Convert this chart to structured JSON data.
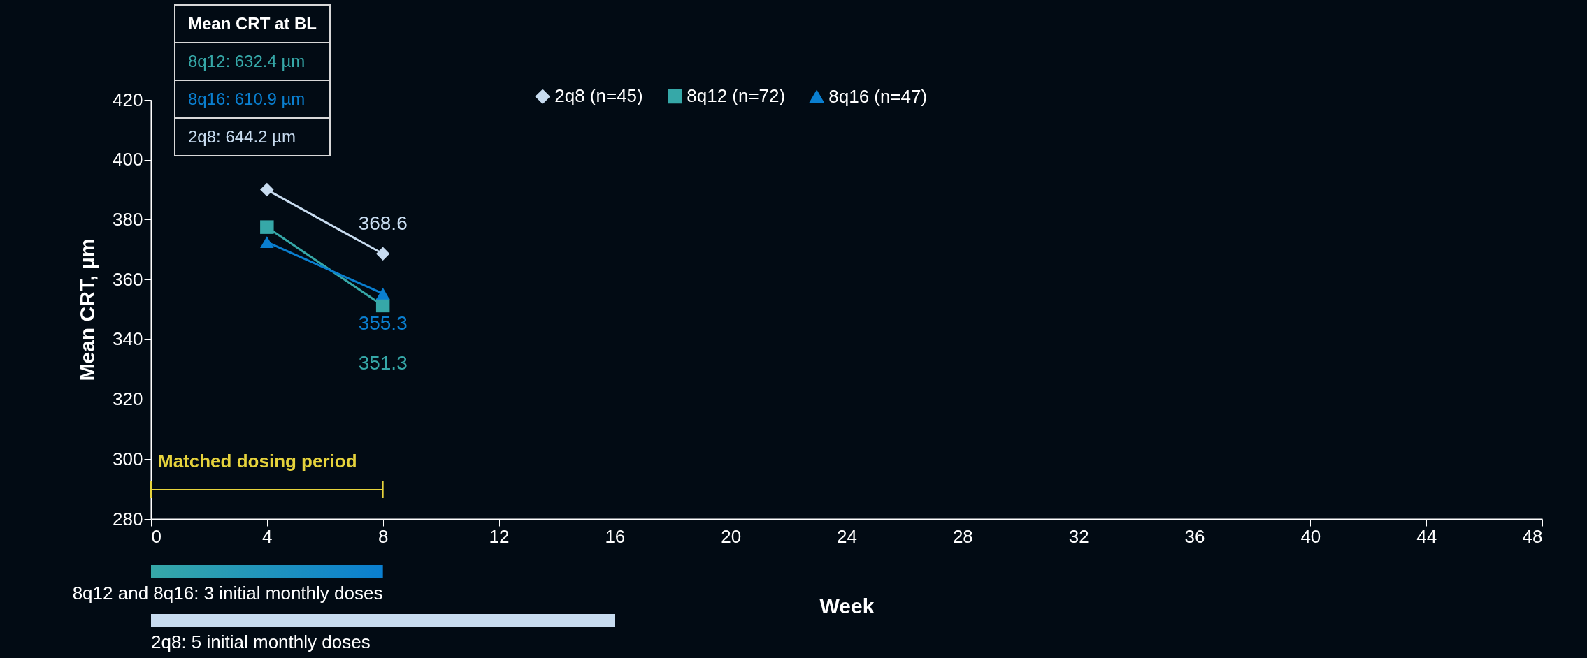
{
  "chart_data": {
    "type": "line",
    "xlabel": "Week",
    "ylabel": "Mean CRT, µm",
    "x": [
      4,
      8
    ],
    "series": [
      {
        "name": "2q8 (n=45)",
        "color": "#c8dcf0",
        "marker": "diamond",
        "values": [
          390,
          368.6
        ],
        "value_labels": [
          null,
          "368.6"
        ]
      },
      {
        "name": "8q12 (n=72)",
        "color": "#36a8a8",
        "marker": "square",
        "values": [
          377.5,
          351.3
        ],
        "value_labels": [
          null,
          "351.3"
        ]
      },
      {
        "name": "8q16 (n=47)",
        "color": "#0a7fd0",
        "marker": "triangle",
        "values": [
          372.5,
          355.3
        ],
        "value_labels": [
          null,
          "355.3"
        ]
      }
    ],
    "xlim": [
      0,
      48
    ],
    "xticks": [
      0,
      4,
      8,
      12,
      16,
      20,
      24,
      28,
      32,
      36,
      40,
      44,
      48
    ],
    "ylim": [
      280,
      420
    ],
    "yticks": [
      280,
      300,
      320,
      340,
      360,
      380,
      400,
      420
    ],
    "grid": false,
    "legend": "top",
    "annotations": [
      "Mean CRT at BL",
      "8q12: 632.4 µm",
      "8q16: 610.9 µm",
      "2q8: 644.2 µm",
      "Matched dosing period",
      "8q12 and 8q16: 3 initial monthly doses",
      "2q8: 5 initial monthly doses"
    ]
  }
}
